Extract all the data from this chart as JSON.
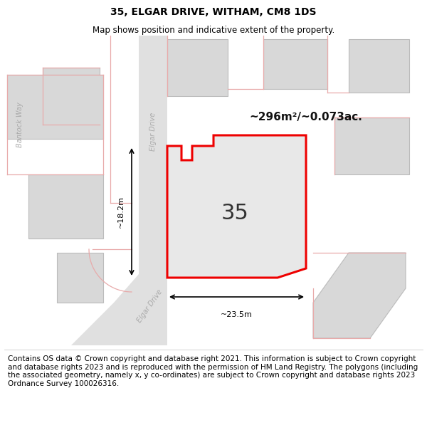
{
  "title": "35, ELGAR DRIVE, WITHAM, CM8 1DS",
  "subtitle": "Map shows position and indicative extent of the property.",
  "footer": "Contains OS data © Crown copyright and database right 2021. This information is subject to Crown copyright and database rights 2023 and is reproduced with the permission of HM Land Registry. The polygons (including the associated geometry, namely x, y co-ordinates) are subject to Crown copyright and database rights 2023 Ordnance Survey 100026316.",
  "bg_color": "#f2f2f2",
  "road_fill": "#e8e8e8",
  "building_fill": "#d8d8d8",
  "building_edge": "#bbbbbb",
  "pink": "#e8aaaa",
  "red_plot": "#ee0000",
  "plot_fill": "#e8e8e8",
  "area_text": "~296m²/~0.073ac.",
  "number_text": "35",
  "width_text": "~23.5m",
  "height_text": "~18.2m",
  "title_fontsize": 10,
  "subtitle_fontsize": 8.5,
  "footer_fontsize": 7.5
}
